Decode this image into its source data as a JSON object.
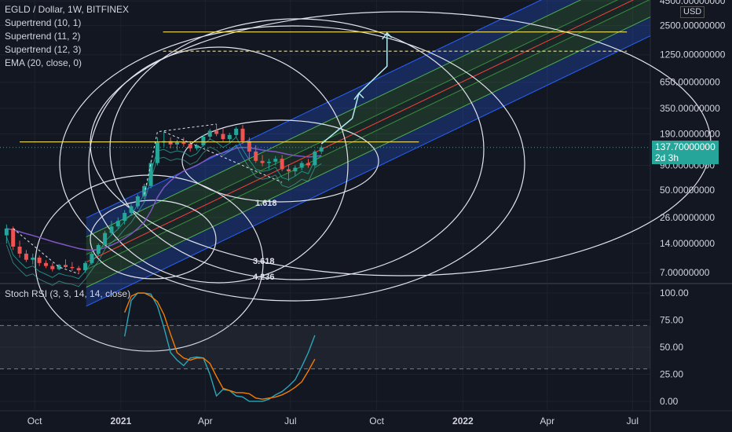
{
  "header": {
    "title": "EGLD / Dollar, 1W, BITFINEX",
    "indicators": [
      "Supertrend (10, 1)",
      "Supertrend (11, 2)",
      "Supertrend (12, 3)",
      "EMA (20, close, 0)"
    ],
    "currency": "USD"
  },
  "price_tag": {
    "value": "137.70000000",
    "countdown": "2d 3h"
  },
  "stoch_label": "Stoch RSI (3, 3, 14, 14, close)",
  "fib_labels": [
    "1.618",
    "3.618",
    "4.236"
  ],
  "colors": {
    "background": "#131722",
    "up": "#26a69a",
    "down": "#ef5350",
    "channel_blue": "#2962ff",
    "channel_green": "#4caf50",
    "channel_mid": "#f44336",
    "yellow": "#f6e05e",
    "stoch_k": "#2ba6b9",
    "stoch_d": "#f57c00",
    "arrow": "#b2ebf2"
  },
  "chart_data": [
    {
      "type": "candlestick",
      "title": "EGLD / Dollar, 1W, BITFINEX",
      "yscale": "log",
      "ylim": [
        5.5,
        4600
      ],
      "y_ticks": [
        "4500.00000000",
        "2500.00000000",
        "1250.00000000",
        "650.00000000",
        "350.00000000",
        "190.00000000",
        "90.00000000",
        "50.00000000",
        "26.00000000",
        "14.00000000",
        "7.00000000"
      ],
      "y_tick_values": [
        4500,
        2500,
        1250,
        650,
        350,
        190,
        90,
        50,
        26,
        14,
        7
      ],
      "x_ticks": [
        "Oct",
        "2021",
        "Apr",
        "Jul",
        "Oct",
        "2022",
        "Apr",
        "Jul"
      ],
      "x_tick_dates": [
        "2020-10-01",
        "2021-01-01",
        "2021-04-01",
        "2021-07-01",
        "2021-10-01",
        "2022-01-01",
        "2022-04-01",
        "2022-07-01"
      ],
      "xlim": [
        "2020-08-25",
        "2022-07-20"
      ],
      "candles": [
        {
          "date": "2020-09-01",
          "o": 17,
          "h": 22,
          "l": 14,
          "c": 20
        },
        {
          "date": "2020-09-08",
          "o": 20,
          "h": 21,
          "l": 12,
          "c": 13
        },
        {
          "date": "2020-09-15",
          "o": 13,
          "h": 15,
          "l": 10,
          "c": 11
        },
        {
          "date": "2020-09-22",
          "o": 11,
          "h": 12,
          "l": 9,
          "c": 9.5
        },
        {
          "date": "2020-09-29",
          "o": 9.5,
          "h": 11,
          "l": 8.5,
          "c": 10
        },
        {
          "date": "2020-10-06",
          "o": 10,
          "h": 10.5,
          "l": 8.2,
          "c": 8.8
        },
        {
          "date": "2020-10-13",
          "o": 8.8,
          "h": 9.4,
          "l": 7.8,
          "c": 8.2
        },
        {
          "date": "2020-10-20",
          "o": 8.2,
          "h": 8.8,
          "l": 7.2,
          "c": 7.6
        },
        {
          "date": "2020-10-27",
          "o": 7.6,
          "h": 8.6,
          "l": 7.4,
          "c": 8.4
        },
        {
          "date": "2020-11-03",
          "o": 8.4,
          "h": 9.6,
          "l": 7.8,
          "c": 8.0
        },
        {
          "date": "2020-11-10",
          "o": 8.0,
          "h": 9.0,
          "l": 7.3,
          "c": 7.8
        },
        {
          "date": "2020-11-17",
          "o": 7.8,
          "h": 8.2,
          "l": 6.8,
          "c": 7.4
        },
        {
          "date": "2020-11-24",
          "o": 7.4,
          "h": 9.2,
          "l": 7.0,
          "c": 8.8
        },
        {
          "date": "2020-12-01",
          "o": 8.8,
          "h": 11.5,
          "l": 8.4,
          "c": 11
        },
        {
          "date": "2020-12-08",
          "o": 11,
          "h": 14,
          "l": 10.5,
          "c": 13.5
        },
        {
          "date": "2020-12-15",
          "o": 13.5,
          "h": 19,
          "l": 13,
          "c": 18
        },
        {
          "date": "2020-12-22",
          "o": 18,
          "h": 24,
          "l": 17,
          "c": 21
        },
        {
          "date": "2020-12-29",
          "o": 21,
          "h": 26,
          "l": 20,
          "c": 24
        },
        {
          "date": "2021-01-05",
          "o": 24,
          "h": 31,
          "l": 22,
          "c": 29
        },
        {
          "date": "2021-01-12",
          "o": 29,
          "h": 36,
          "l": 28,
          "c": 34
        },
        {
          "date": "2021-01-19",
          "o": 34,
          "h": 45,
          "l": 32,
          "c": 43
        },
        {
          "date": "2021-01-26",
          "o": 43,
          "h": 58,
          "l": 40,
          "c": 55
        },
        {
          "date": "2021-02-02",
          "o": 55,
          "h": 100,
          "l": 52,
          "c": 95
        },
        {
          "date": "2021-02-09",
          "o": 95,
          "h": 175,
          "l": 90,
          "c": 155
        },
        {
          "date": "2021-02-16",
          "o": 155,
          "h": 200,
          "l": 140,
          "c": 160
        },
        {
          "date": "2021-02-23",
          "o": 160,
          "h": 175,
          "l": 135,
          "c": 148
        },
        {
          "date": "2021-03-02",
          "o": 148,
          "h": 165,
          "l": 130,
          "c": 155
        },
        {
          "date": "2021-03-09",
          "o": 155,
          "h": 175,
          "l": 140,
          "c": 150
        },
        {
          "date": "2021-03-16",
          "o": 150,
          "h": 160,
          "l": 125,
          "c": 135
        },
        {
          "date": "2021-03-23",
          "o": 135,
          "h": 150,
          "l": 128,
          "c": 145
        },
        {
          "date": "2021-03-30",
          "o": 145,
          "h": 185,
          "l": 140,
          "c": 178
        },
        {
          "date": "2021-04-06",
          "o": 178,
          "h": 215,
          "l": 165,
          "c": 205
        },
        {
          "date": "2021-04-13",
          "o": 205,
          "h": 240,
          "l": 180,
          "c": 190
        },
        {
          "date": "2021-04-20",
          "o": 190,
          "h": 215,
          "l": 160,
          "c": 168
        },
        {
          "date": "2021-04-27",
          "o": 168,
          "h": 195,
          "l": 155,
          "c": 185
        },
        {
          "date": "2021-05-04",
          "o": 185,
          "h": 225,
          "l": 175,
          "c": 215
        },
        {
          "date": "2021-05-11",
          "o": 215,
          "h": 235,
          "l": 150,
          "c": 160
        },
        {
          "date": "2021-05-18",
          "o": 160,
          "h": 175,
          "l": 100,
          "c": 125
        },
        {
          "date": "2021-05-25",
          "o": 125,
          "h": 145,
          "l": 95,
          "c": 100
        },
        {
          "date": "2021-06-01",
          "o": 100,
          "h": 115,
          "l": 88,
          "c": 95
        },
        {
          "date": "2021-06-08",
          "o": 95,
          "h": 105,
          "l": 82,
          "c": 98
        },
        {
          "date": "2021-06-15",
          "o": 98,
          "h": 112,
          "l": 90,
          "c": 105
        },
        {
          "date": "2021-06-22",
          "o": 105,
          "h": 115,
          "l": 78,
          "c": 82
        },
        {
          "date": "2021-06-29",
          "o": 82,
          "h": 92,
          "l": 62,
          "c": 78
        },
        {
          "date": "2021-07-06",
          "o": 78,
          "h": 90,
          "l": 70,
          "c": 85
        },
        {
          "date": "2021-07-13",
          "o": 85,
          "h": 100,
          "l": 80,
          "c": 95
        },
        {
          "date": "2021-07-20",
          "o": 95,
          "h": 105,
          "l": 85,
          "c": 90
        },
        {
          "date": "2021-07-27",
          "o": 90,
          "h": 130,
          "l": 86,
          "c": 125
        },
        {
          "date": "2021-08-03",
          "o": 125,
          "h": 145,
          "l": 118,
          "c": 137.7
        }
      ]
    },
    {
      "type": "line",
      "title": "Stoch RSI (3, 3, 14, 14, close)",
      "ylim": [
        -8,
        108
      ],
      "y_ticks": [
        "100.00",
        "75.00",
        "50.00",
        "25.00",
        "0.00"
      ],
      "y_tick_values": [
        100,
        75,
        50,
        25,
        0
      ],
      "bands": [
        30,
        70
      ],
      "series": [
        {
          "values": [
            [
              "2021-01-05",
              60
            ],
            [
              "2021-01-12",
              93
            ],
            [
              "2021-01-19",
              100
            ],
            [
              "2021-01-26",
              100
            ],
            [
              "2021-02-02",
              99
            ],
            [
              "2021-02-09",
              88
            ],
            [
              "2021-02-16",
              68
            ],
            [
              "2021-02-23",
              45
            ],
            [
              "2021-03-02",
              38
            ],
            [
              "2021-03-09",
              33
            ],
            [
              "2021-03-16",
              40
            ],
            [
              "2021-03-23",
              41
            ],
            [
              "2021-03-30",
              40
            ],
            [
              "2021-04-06",
              25
            ],
            [
              "2021-04-13",
              5
            ],
            [
              "2021-04-20",
              11
            ],
            [
              "2021-04-27",
              10
            ],
            [
              "2021-05-04",
              5
            ],
            [
              "2021-05-11",
              4
            ],
            [
              "2021-05-18",
              0
            ],
            [
              "2021-05-25",
              0
            ],
            [
              "2021-06-01",
              0
            ],
            [
              "2021-06-08",
              2
            ],
            [
              "2021-06-15",
              6
            ],
            [
              "2021-06-22",
              9
            ],
            [
              "2021-06-29",
              14
            ],
            [
              "2021-07-06",
              20
            ],
            [
              "2021-07-13",
              32
            ],
            [
              "2021-07-20",
              45
            ],
            [
              "2021-07-27",
              61
            ]
          ]
        },
        {
          "values": [
            [
              "2021-01-05",
              82
            ],
            [
              "2021-01-12",
              97
            ],
            [
              "2021-01-19",
              100
            ],
            [
              "2021-01-26",
              100
            ],
            [
              "2021-02-02",
              97
            ],
            [
              "2021-02-09",
              92
            ],
            [
              "2021-02-16",
              80
            ],
            [
              "2021-02-23",
              62
            ],
            [
              "2021-03-02",
              45
            ],
            [
              "2021-03-09",
              40
            ],
            [
              "2021-03-16",
              38
            ],
            [
              "2021-03-23",
              40
            ],
            [
              "2021-03-30",
              40
            ],
            [
              "2021-04-06",
              35
            ],
            [
              "2021-04-13",
              23
            ],
            [
              "2021-04-20",
              12
            ],
            [
              "2021-04-27",
              10
            ],
            [
              "2021-05-04",
              8
            ],
            [
              "2021-05-11",
              8
            ],
            [
              "2021-05-18",
              7
            ],
            [
              "2021-05-25",
              3
            ],
            [
              "2021-06-01",
              2
            ],
            [
              "2021-06-08",
              3
            ],
            [
              "2021-06-15",
              4
            ],
            [
              "2021-06-22",
              6
            ],
            [
              "2021-06-29",
              9
            ],
            [
              "2021-07-06",
              13
            ],
            [
              "2021-07-13",
              18
            ],
            [
              "2021-07-20",
              28
            ],
            [
              "2021-07-27",
              39
            ]
          ]
        }
      ]
    }
  ]
}
